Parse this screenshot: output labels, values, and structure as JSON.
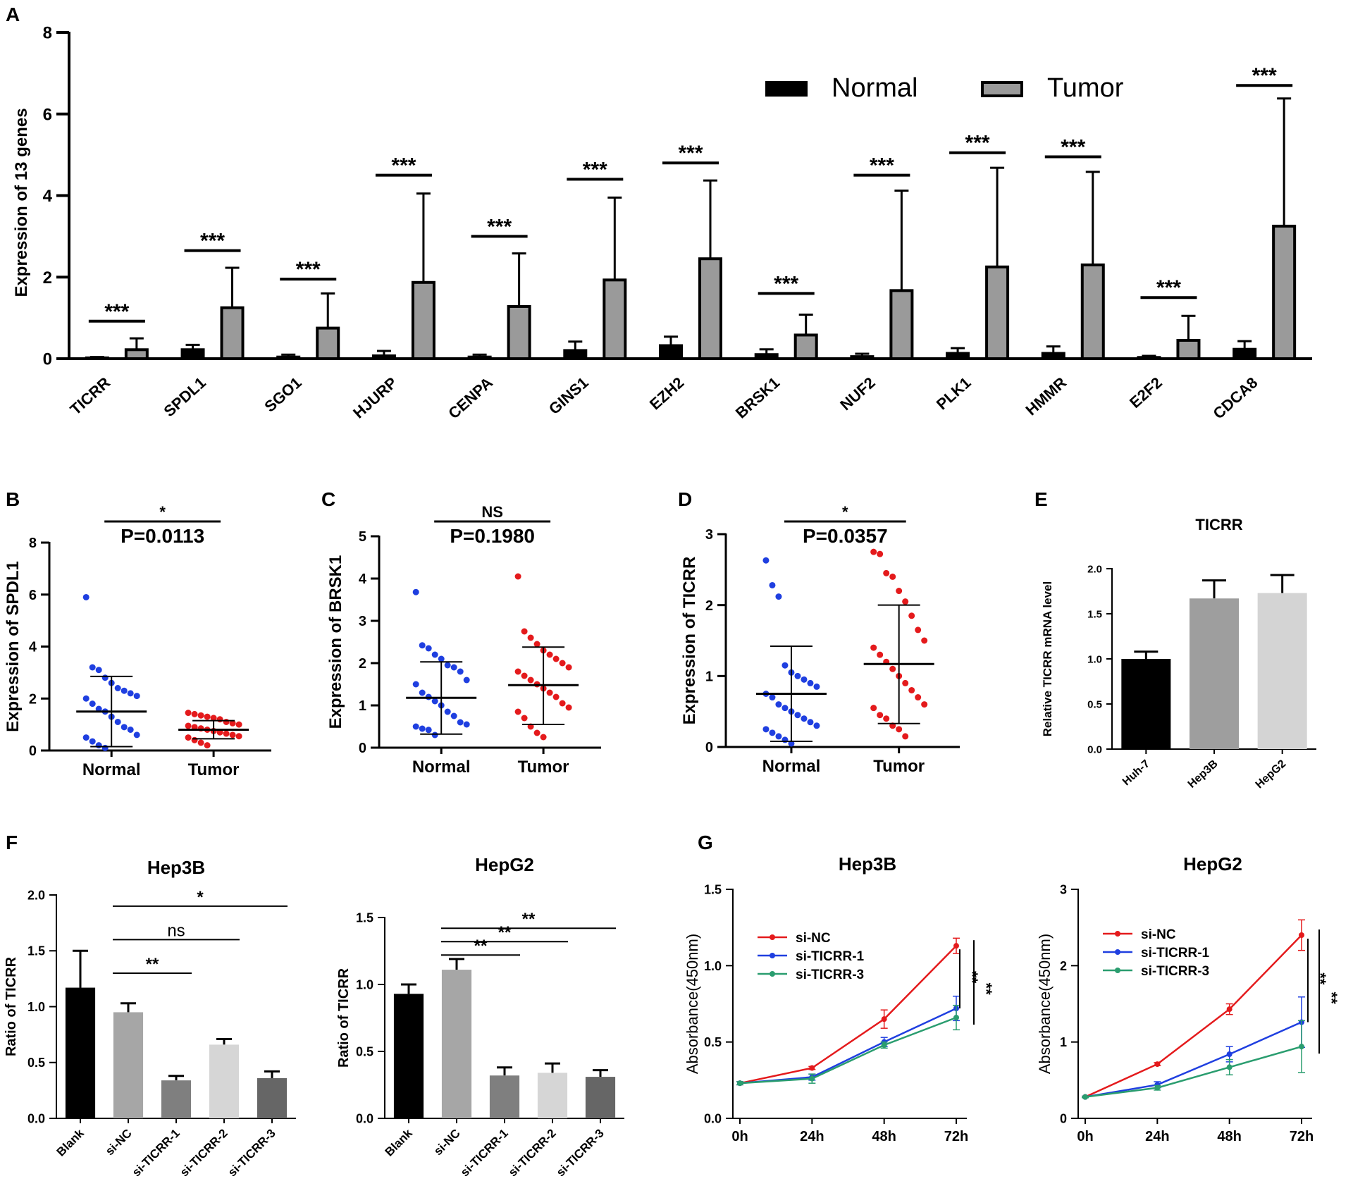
{
  "chart_data": [
    {
      "panel": "A",
      "type": "bar",
      "ylabel": "Expression of 13 genes",
      "ylim": [
        0,
        8
      ],
      "yticks": [
        0,
        2,
        4,
        6,
        8
      ],
      "categories": [
        "TICRR",
        "SPDL1",
        "SGO1",
        "HJURP",
        "CENPA",
        "GINS1",
        "EZH2",
        "BRSK1",
        "NUF2",
        "PLK1",
        "HMMR",
        "E2F2",
        "CDCA8"
      ],
      "series": [
        {
          "name": "Normal",
          "color": "#000000",
          "values": [
            0.02,
            0.22,
            0.04,
            0.07,
            0.04,
            0.2,
            0.32,
            0.1,
            0.05,
            0.13,
            0.13,
            0.03,
            0.23
          ],
          "err": [
            0.02,
            0.12,
            0.06,
            0.12,
            0.06,
            0.22,
            0.22,
            0.13,
            0.07,
            0.13,
            0.17,
            0.04,
            0.2
          ]
        },
        {
          "name": "Tumor",
          "color": "#9a9a9a",
          "values": [
            0.22,
            1.25,
            0.75,
            1.87,
            1.28,
            1.93,
            2.45,
            0.58,
            1.67,
            2.25,
            2.3,
            0.45,
            3.25
          ],
          "err": [
            0.28,
            0.98,
            0.85,
            2.18,
            1.3,
            2.02,
            1.92,
            0.5,
            2.45,
            2.43,
            2.28,
            0.6,
            3.13
          ]
        }
      ],
      "significance": [
        "***",
        "***",
        "***",
        "***",
        "***",
        "***",
        "***",
        "***",
        "***",
        "***",
        "***",
        "***",
        "***"
      ],
      "sig_y": [
        0.92,
        2.65,
        1.95,
        4.5,
        3.0,
        4.4,
        4.8,
        1.6,
        4.5,
        5.05,
        4.95,
        1.5,
        6.7
      ]
    },
    {
      "panel": "B",
      "type": "scatter",
      "ylabel": "Expression of SPDL1",
      "ylim": [
        0,
        8
      ],
      "yticks": [
        0,
        2,
        4,
        6,
        8
      ],
      "groups": [
        {
          "name": "Normal",
          "color": "#1f3fe0",
          "mean": 1.5,
          "sd_low": 0.15,
          "sd_high": 2.85,
          "points": [
            5.9,
            3.2,
            3.1,
            2.8,
            2.6,
            2.4,
            2.3,
            2.2,
            2.1,
            2.0,
            1.8,
            1.6,
            1.5,
            1.3,
            1.1,
            0.9,
            0.8,
            0.6,
            0.5,
            0.35,
            0.2,
            0.1
          ]
        },
        {
          "name": "Tumor",
          "color": "#e41a1c",
          "mean": 0.8,
          "sd_low": 0.45,
          "sd_high": 1.15,
          "points": [
            1.45,
            1.4,
            1.35,
            1.3,
            1.25,
            1.2,
            1.1,
            1.05,
            1.0,
            0.95,
            0.9,
            0.85,
            0.8,
            0.75,
            0.7,
            0.65,
            0.6,
            0.55,
            0.5,
            0.4,
            0.3,
            0.2
          ]
        }
      ],
      "stat_mark": "*",
      "stat_text": "P=0.0113"
    },
    {
      "panel": "C",
      "type": "scatter",
      "ylabel": "Expression of BRSK1",
      "ylim": [
        0,
        5
      ],
      "yticks": [
        0,
        1,
        2,
        3,
        4,
        5
      ],
      "groups": [
        {
          "name": "Normal",
          "color": "#1f3fe0",
          "mean": 1.18,
          "sd_low": 0.32,
          "sd_high": 2.03,
          "points": [
            3.68,
            2.42,
            2.35,
            2.2,
            2.1,
            1.95,
            1.9,
            1.8,
            1.6,
            1.5,
            1.3,
            1.2,
            1.1,
            1.0,
            0.85,
            0.75,
            0.6,
            0.55,
            0.5,
            0.45,
            0.42,
            0.3
          ]
        },
        {
          "name": "Tumor",
          "color": "#e41a1c",
          "mean": 1.48,
          "sd_low": 0.55,
          "sd_high": 2.38,
          "points": [
            4.05,
            2.75,
            2.6,
            2.45,
            2.3,
            2.2,
            2.1,
            2.0,
            1.9,
            1.8,
            1.7,
            1.6,
            1.5,
            1.4,
            1.3,
            1.2,
            1.05,
            0.95,
            0.85,
            0.7,
            0.5,
            0.35,
            0.25
          ]
        }
      ],
      "stat_mark": "NS",
      "stat_text": "P=0.1980"
    },
    {
      "panel": "D",
      "type": "scatter",
      "ylabel": "Expression of TICRR",
      "ylim": [
        0,
        3
      ],
      "yticks": [
        0,
        1,
        2,
        3
      ],
      "groups": [
        {
          "name": "Normal",
          "color": "#1f3fe0",
          "mean": 0.75,
          "sd_low": 0.08,
          "sd_high": 1.42,
          "points": [
            2.63,
            2.28,
            2.12,
            1.15,
            1.05,
            1.0,
            0.95,
            0.9,
            0.85,
            0.75,
            0.7,
            0.6,
            0.55,
            0.5,
            0.45,
            0.4,
            0.35,
            0.3,
            0.25,
            0.2,
            0.15,
            0.1,
            0.05
          ]
        },
        {
          "name": "Tumor",
          "color": "#e41a1c",
          "mean": 1.17,
          "sd_low": 0.33,
          "sd_high": 2.0,
          "points": [
            2.75,
            2.72,
            2.45,
            2.4,
            2.2,
            2.05,
            1.85,
            1.65,
            1.5,
            1.4,
            1.3,
            1.2,
            1.1,
            1.0,
            0.9,
            0.8,
            0.7,
            0.6,
            0.55,
            0.45,
            0.4,
            0.3,
            0.25,
            0.15
          ]
        }
      ],
      "stat_mark": "*",
      "stat_text": "P=0.0357"
    },
    {
      "panel": "E",
      "type": "bar",
      "title": "TICRR",
      "ylabel": "Relative TICRR mRNA level",
      "ylim": [
        0,
        2.0
      ],
      "yticks": [
        "0.0",
        "0.5",
        "1.0",
        "1.5",
        "2.0"
      ],
      "categories": [
        "Huh-7",
        "Hep3B",
        "HepG2"
      ],
      "values": [
        1.0,
        1.67,
        1.73
      ],
      "err": [
        0.08,
        0.2,
        0.2
      ],
      "colors": [
        "#000000",
        "#9e9e9e",
        "#d4d4d4"
      ]
    },
    {
      "panel": "F",
      "type": "bar",
      "title": "Hep3B",
      "ylabel": "Ratio of TICRR",
      "ylim": [
        0,
        2.0
      ],
      "yticks": [
        "0.0",
        "0.5",
        "1.0",
        "1.5",
        "2.0"
      ],
      "categories": [
        "Blank",
        "si-NC",
        "si-TICRR-1",
        "si-TICRR-2",
        "si-TICRR-3"
      ],
      "values": [
        1.17,
        0.95,
        0.34,
        0.66,
        0.36
      ],
      "err": [
        0.33,
        0.08,
        0.04,
        0.05,
        0.06
      ],
      "colors": [
        "#000000",
        "#a6a6a6",
        "#7f7f7f",
        "#d6d6d6",
        "#666666"
      ],
      "comparisons": [
        {
          "from": 1,
          "to": 2,
          "label": "**",
          "y": 1.3
        },
        {
          "from": 1,
          "to": 3,
          "label": "ns",
          "y": 1.6
        },
        {
          "from": 1,
          "to": 4,
          "label": "*",
          "y": 1.9
        }
      ]
    },
    {
      "panel": "F2",
      "type": "bar",
      "title": "HepG2",
      "ylabel": "Ratio of TICRR",
      "ylim": [
        0,
        1.5
      ],
      "yticks": [
        "0.0",
        "0.5",
        "1.0",
        "1.5"
      ],
      "categories": [
        "Blank",
        "si-NC",
        "si-TICRR-1",
        "si-TICRR-2",
        "si-TICRR-3"
      ],
      "values": [
        0.93,
        1.11,
        0.32,
        0.34,
        0.31
      ],
      "err": [
        0.07,
        0.08,
        0.06,
        0.07,
        0.05
      ],
      "colors": [
        "#000000",
        "#a6a6a6",
        "#7f7f7f",
        "#d6d6d6",
        "#666666"
      ],
      "comparisons": [
        {
          "from": 1,
          "to": 2,
          "label": "**",
          "y": 1.22
        },
        {
          "from": 1,
          "to": 3,
          "label": "**",
          "y": 1.32
        },
        {
          "from": 1,
          "to": 4,
          "label": "**",
          "y": 1.42
        }
      ]
    },
    {
      "panel": "G",
      "type": "line",
      "title": "Hep3B",
      "ylabel": "Absorbance(450nm)",
      "ylim": [
        0,
        1.5
      ],
      "yticks": [
        "0.0",
        "0.5",
        "1.0",
        "1.5"
      ],
      "x": [
        "0h",
        "24h",
        "48h",
        "72h"
      ],
      "series": [
        {
          "name": "si-NC",
          "color": "#e41a1c",
          "values": [
            0.23,
            0.33,
            0.65,
            1.13
          ],
          "err": [
            0.01,
            0.01,
            0.06,
            0.05
          ]
        },
        {
          "name": "si-TICRR-1",
          "color": "#1f3fe0",
          "values": [
            0.23,
            0.27,
            0.5,
            0.72
          ],
          "err": [
            0.01,
            0.02,
            0.03,
            0.08
          ]
        },
        {
          "name": "si-TICRR-3",
          "color": "#2a9d6f",
          "values": [
            0.23,
            0.26,
            0.48,
            0.66
          ],
          "err": [
            0.01,
            0.03,
            0.02,
            0.08
          ]
        }
      ],
      "significance": [
        "**",
        "**"
      ]
    },
    {
      "panel": "G2",
      "type": "line",
      "title": "HepG2",
      "ylabel": "Absorbance(450nm)",
      "ylim": [
        0,
        3
      ],
      "yticks": [
        "0",
        "1",
        "2",
        "3"
      ],
      "x": [
        "0h",
        "24h",
        "48h",
        "72h"
      ],
      "series": [
        {
          "name": "si-NC",
          "color": "#e41a1c",
          "values": [
            0.28,
            0.71,
            1.43,
            2.4
          ],
          "err": [
            0.01,
            0.02,
            0.07,
            0.2
          ]
        },
        {
          "name": "si-TICRR-1",
          "color": "#1f3fe0",
          "values": [
            0.28,
            0.44,
            0.84,
            1.26
          ],
          "err": [
            0.01,
            0.04,
            0.1,
            0.33
          ]
        },
        {
          "name": "si-TICRR-3",
          "color": "#2a9d6f",
          "values": [
            0.28,
            0.4,
            0.67,
            0.94
          ],
          "err": [
            0.01,
            0.03,
            0.1,
            0.34
          ]
        }
      ],
      "significance": [
        "**",
        "**"
      ]
    }
  ]
}
